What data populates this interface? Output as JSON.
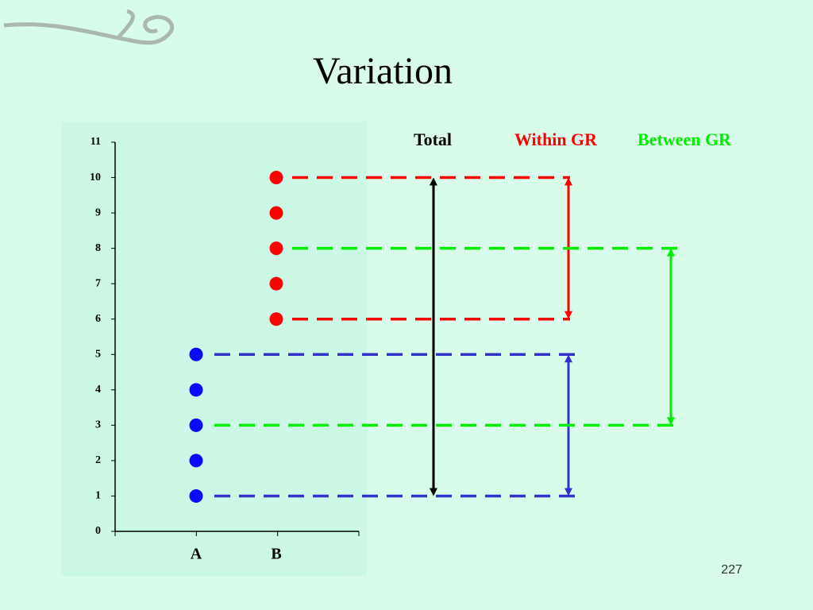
{
  "title": "Variation",
  "page_number": 227,
  "chart_data": {
    "type": "dot",
    "groups": [
      {
        "category": "A",
        "color": "#0a0aff",
        "values": [
          1,
          2,
          3,
          4,
          5
        ]
      },
      {
        "category": "B",
        "color": "#ff0000",
        "values": [
          6,
          7,
          8,
          9,
          10
        ]
      }
    ],
    "ylim": [
      0,
      11
    ],
    "yticks": [
      0,
      1,
      2,
      3,
      4,
      5,
      6,
      7,
      8,
      9,
      10,
      11
    ],
    "brackets": [
      {
        "label": "Total",
        "color": "#000000",
        "from": 1,
        "to": 10
      },
      {
        "label": "Within GR",
        "color": "#ff0000",
        "from": 6,
        "to": 10
      },
      {
        "color": "#3333cc",
        "from": 1,
        "to": 5
      },
      {
        "label": "Between GR",
        "color": "#00ee00",
        "from": 3,
        "to": 8
      }
    ]
  }
}
